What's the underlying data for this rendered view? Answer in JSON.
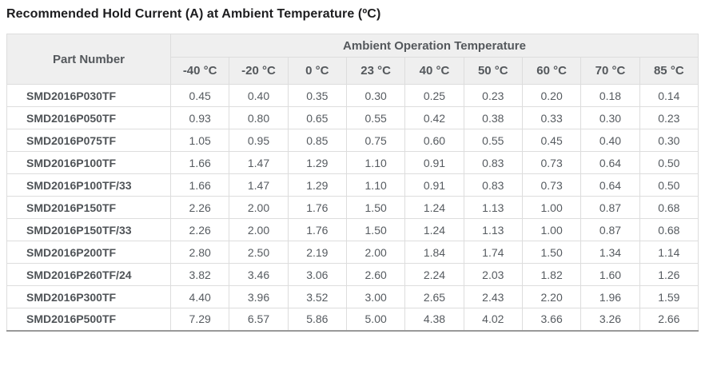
{
  "title": "Recommended Hold Current (A) at Ambient Temperature (ºC)",
  "table": {
    "part_number_header": "Part Number",
    "group_header": "Ambient Operation Temperature",
    "temperature_headers": [
      "-40 °C",
      "-20 °C",
      "0 °C",
      "23 °C",
      "40 °C",
      "50 °C",
      "60 °C",
      "70 °C",
      "85 °C"
    ],
    "rows": [
      {
        "part": "SMD2016P030TF",
        "values": [
          "0.45",
          "0.40",
          "0.35",
          "0.30",
          "0.25",
          "0.23",
          "0.20",
          "0.18",
          "0.14"
        ]
      },
      {
        "part": "SMD2016P050TF",
        "values": [
          "0.93",
          "0.80",
          "0.65",
          "0.55",
          "0.42",
          "0.38",
          "0.33",
          "0.30",
          "0.23"
        ]
      },
      {
        "part": "SMD2016P075TF",
        "values": [
          "1.05",
          "0.95",
          "0.85",
          "0.75",
          "0.60",
          "0.55",
          "0.45",
          "0.40",
          "0.30"
        ]
      },
      {
        "part": "SMD2016P100TF",
        "values": [
          "1.66",
          "1.47",
          "1.29",
          "1.10",
          "0.91",
          "0.83",
          "0.73",
          "0.64",
          "0.50"
        ]
      },
      {
        "part": "SMD2016P100TF/33",
        "values": [
          "1.66",
          "1.47",
          "1.29",
          "1.10",
          "0.91",
          "0.83",
          "0.73",
          "0.64",
          "0.50"
        ]
      },
      {
        "part": "SMD2016P150TF",
        "values": [
          "2.26",
          "2.00",
          "1.76",
          "1.50",
          "1.24",
          "1.13",
          "1.00",
          "0.87",
          "0.68"
        ]
      },
      {
        "part": "SMD2016P150TF/33",
        "values": [
          "2.26",
          "2.00",
          "1.76",
          "1.50",
          "1.24",
          "1.13",
          "1.00",
          "0.87",
          "0.68"
        ]
      },
      {
        "part": "SMD2016P200TF",
        "values": [
          "2.80",
          "2.50",
          "2.19",
          "2.00",
          "1.84",
          "1.74",
          "1.50",
          "1.34",
          "1.14"
        ]
      },
      {
        "part": "SMD2016P260TF/24",
        "values": [
          "3.82",
          "3.46",
          "3.06",
          "2.60",
          "2.24",
          "2.03",
          "1.82",
          "1.60",
          "1.26"
        ]
      },
      {
        "part": "SMD2016P300TF",
        "values": [
          "4.40",
          "3.96",
          "3.52",
          "3.00",
          "2.65",
          "2.43",
          "2.20",
          "1.96",
          "1.59"
        ]
      },
      {
        "part": "SMD2016P500TF",
        "values": [
          "7.29",
          "6.57",
          "5.86",
          "5.00",
          "4.38",
          "4.02",
          "3.66",
          "3.26",
          "2.66"
        ]
      }
    ]
  },
  "chart_data": {
    "type": "table",
    "title": "Recommended Hold Current (A) at Ambient Temperature (ºC)",
    "columns": [
      "Part Number",
      "-40 °C",
      "-20 °C",
      "0 °C",
      "23 °C",
      "40 °C",
      "50 °C",
      "60 °C",
      "70 °C",
      "85 °C"
    ],
    "rows": [
      [
        "SMD2016P030TF",
        0.45,
        0.4,
        0.35,
        0.3,
        0.25,
        0.23,
        0.2,
        0.18,
        0.14
      ],
      [
        "SMD2016P050TF",
        0.93,
        0.8,
        0.65,
        0.55,
        0.42,
        0.38,
        0.33,
        0.3,
        0.23
      ],
      [
        "SMD2016P075TF",
        1.05,
        0.95,
        0.85,
        0.75,
        0.6,
        0.55,
        0.45,
        0.4,
        0.3
      ],
      [
        "SMD2016P100TF",
        1.66,
        1.47,
        1.29,
        1.1,
        0.91,
        0.83,
        0.73,
        0.64,
        0.5
      ],
      [
        "SMD2016P100TF/33",
        1.66,
        1.47,
        1.29,
        1.1,
        0.91,
        0.83,
        0.73,
        0.64,
        0.5
      ],
      [
        "SMD2016P150TF",
        2.26,
        2.0,
        1.76,
        1.5,
        1.24,
        1.13,
        1.0,
        0.87,
        0.68
      ],
      [
        "SMD2016P150TF/33",
        2.26,
        2.0,
        1.76,
        1.5,
        1.24,
        1.13,
        1.0,
        0.87,
        0.68
      ],
      [
        "SMD2016P200TF",
        2.8,
        2.5,
        2.19,
        2.0,
        1.84,
        1.74,
        1.5,
        1.34,
        1.14
      ],
      [
        "SMD2016P260TF/24",
        3.82,
        3.46,
        3.06,
        2.6,
        2.24,
        2.03,
        1.82,
        1.6,
        1.26
      ],
      [
        "SMD2016P300TF",
        4.4,
        3.96,
        3.52,
        3.0,
        2.65,
        2.43,
        2.2,
        1.96,
        1.59
      ],
      [
        "SMD2016P500TF",
        7.29,
        6.57,
        5.86,
        5.0,
        4.38,
        4.02,
        3.66,
        3.26,
        2.66
      ]
    ]
  },
  "colors": {
    "header_background": "#efefef",
    "cell_border": "#dddddd",
    "table_bottom_border": "#999999",
    "header_text": "#54585c",
    "cell_text": "#565b60",
    "title_text": "#1d1d1f"
  }
}
